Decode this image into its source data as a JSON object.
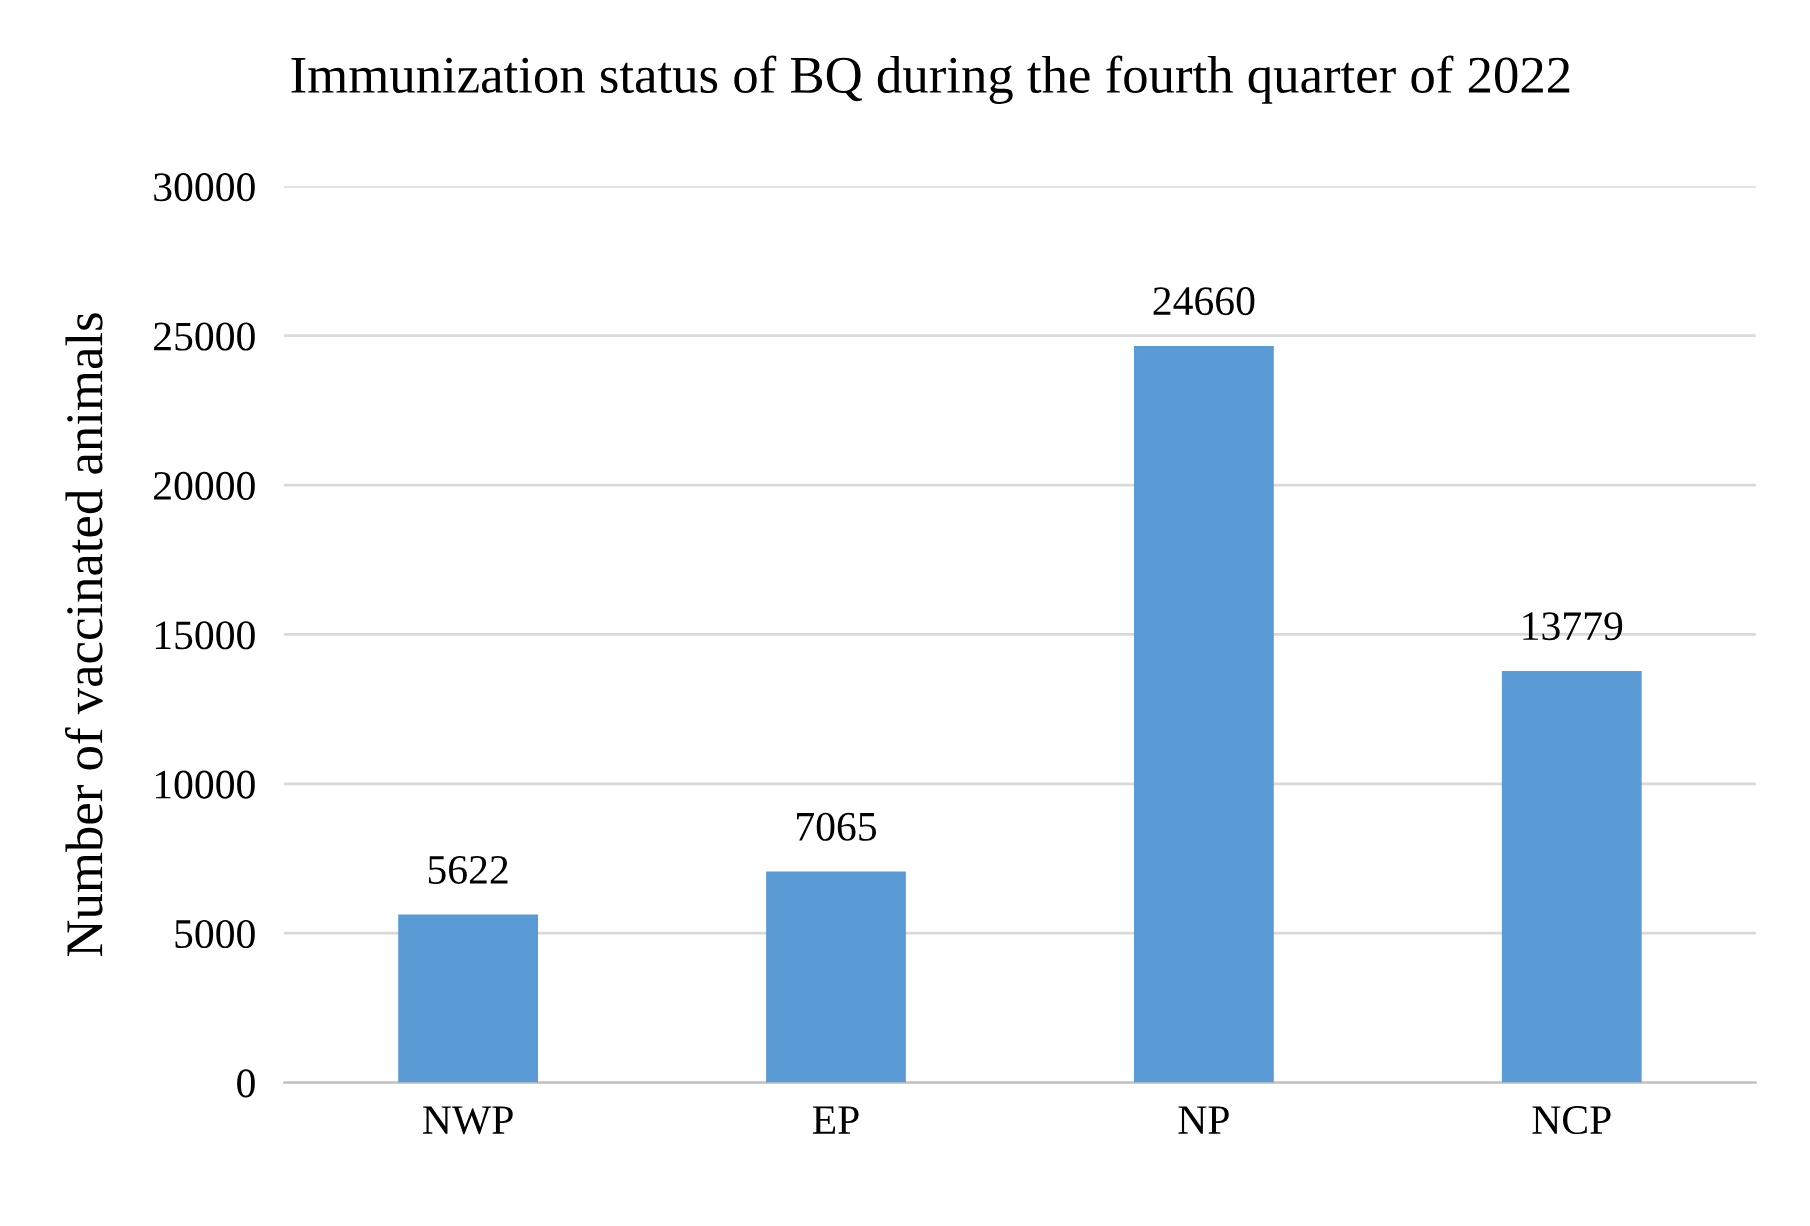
{
  "chart_data": {
    "type": "bar",
    "title": "Immunization status of BQ during the fourth quarter of 2022",
    "ylabel": "Number of vaccinated animals",
    "categories": [
      "NWP",
      "EP",
      "NP",
      "NCP"
    ],
    "values": [
      5622,
      7065,
      24660,
      13779
    ],
    "color": "#5b9bd5",
    "ylim": [
      0,
      30000
    ],
    "yticks": [
      0,
      5000,
      10000,
      15000,
      20000,
      25000,
      30000
    ],
    "grid": "y",
    "data_labels": true
  }
}
